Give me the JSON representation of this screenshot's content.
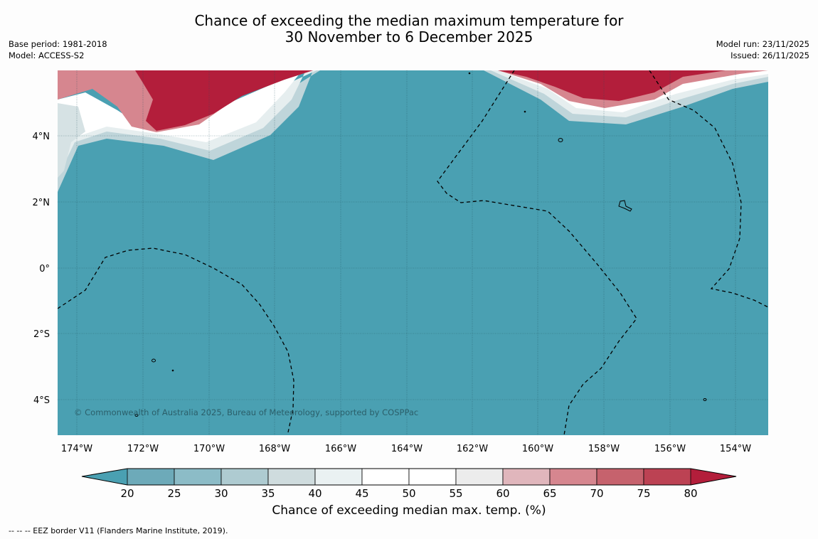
{
  "title": {
    "line1": "Chance of exceeding the median maximum temperature for",
    "line2": "30 November to 6 December 2025"
  },
  "meta_left": {
    "base_period": "Base period: 1981-2018",
    "model": "Model: ACCESS-S2"
  },
  "meta_right": {
    "model_run": "Model run: 23/11/2025",
    "issued": "Issued: 26/11/2025"
  },
  "map": {
    "longitude_labels": [
      "174°W",
      "172°W",
      "170°W",
      "168°W",
      "166°W",
      "164°W",
      "162°W",
      "160°W",
      "158°W",
      "156°W",
      "154°W"
    ],
    "latitude_labels": [
      "4°N",
      "2°N",
      "0°",
      "2°S",
      "4°S"
    ],
    "copyright": "© Commonwealth of Australia 2025, Bureau of Meteorology, supported by COSPPac",
    "ocean_color": "#4aa0b2",
    "warm_color": "#b31e3b"
  },
  "colorbar": {
    "ticks": [
      "20",
      "25",
      "30",
      "35",
      "40",
      "45",
      "50",
      "55",
      "60",
      "65",
      "70",
      "75",
      "80"
    ],
    "colors": [
      "#6daab9",
      "#8cbcc7",
      "#aecbd1",
      "#cfdcde",
      "#eaf1f2",
      "#ffffff",
      "#ffffff",
      "#ececec",
      "#e0b6bc",
      "#d6868f",
      "#c6626d",
      "#bc4253"
    ],
    "low_color": "#4aa0b2",
    "high_color": "#b31e3b",
    "label": "Chance of exceeding median max. temp. (%)"
  },
  "footnote": "-- -- -- EEZ border V11 (Flanders Marine Institute, 2019)."
}
